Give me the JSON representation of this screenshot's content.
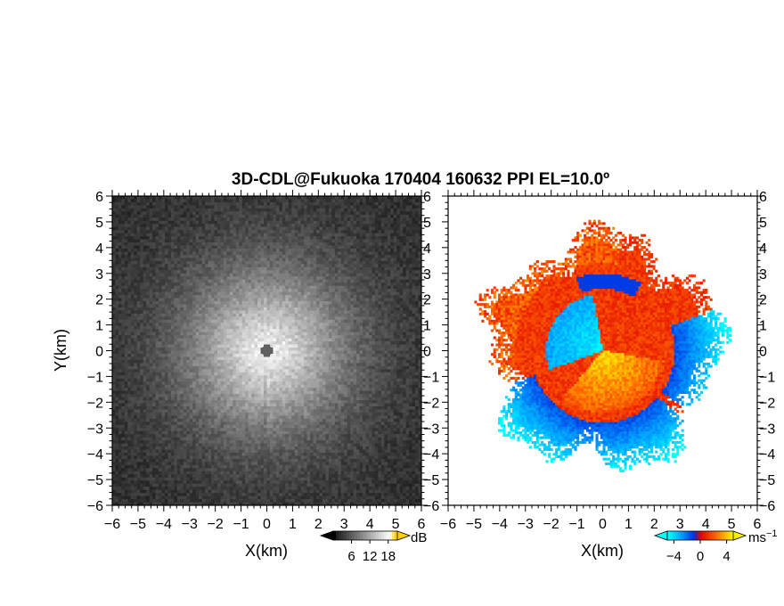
{
  "title": "3D-CDL@Fukuoka 170404 160632 PPI EL=10.0º",
  "chart_data": [
    {
      "type": "heatmap",
      "panel": "reflectivity",
      "xlabel": "X(km)",
      "ylabel": "Y(km)",
      "xlim": [
        -6,
        6
      ],
      "ylim": [
        -6,
        6
      ],
      "xticks": [
        "−6",
        "−5",
        "−4",
        "−3",
        "−2",
        "−1",
        "0",
        "1",
        "2",
        "3",
        "4",
        "5",
        "6"
      ],
      "yticks": [
        "−6",
        "−5",
        "−4",
        "−3",
        "−2",
        "−1",
        "0",
        "1",
        "2",
        "3",
        "4",
        "5",
        "6"
      ],
      "colormap": [
        "#000000",
        "#ffffff",
        "#ffd000"
      ],
      "colorbar": {
        "ticks": [
          "6",
          "12",
          "18"
        ],
        "unit": "dB",
        "range": [
          0,
          21
        ]
      },
      "field": {
        "center_value": 20,
        "edge_value": 2,
        "core_radius_km": 0.2
      }
    },
    {
      "type": "heatmap",
      "panel": "doppler-velocity",
      "xlabel": "X(km)",
      "ylabel": "",
      "xlim": [
        -6,
        6
      ],
      "ylim": [
        -6,
        6
      ],
      "xticks": [
        "−6",
        "−5",
        "−4",
        "−3",
        "−2",
        "−1",
        "0",
        "1",
        "2",
        "3",
        "4",
        "5",
        "6"
      ],
      "yticks": [
        "−6",
        "−5",
        "−4",
        "−3",
        "−2",
        "−1",
        "0",
        "1",
        "2",
        "3",
        "4",
        "5",
        "6"
      ],
      "colormap": [
        "#00ffff",
        "#00a0ff",
        "#0030e0",
        "#e00000",
        "#ff6600",
        "#ffee00"
      ],
      "colorbar": {
        "ticks": [
          "−4",
          "0",
          "4"
        ],
        "unit": "ms",
        "unit_sup": "−1",
        "range": [
          -5,
          5
        ]
      },
      "field": {
        "max_range_km": 4.3,
        "negative_sector_deg": [
          100,
          200
        ],
        "positive_sector_deg": [
          230,
          350
        ]
      }
    }
  ],
  "colors": {
    "background": "#ffffff",
    "frame": "#000000"
  }
}
